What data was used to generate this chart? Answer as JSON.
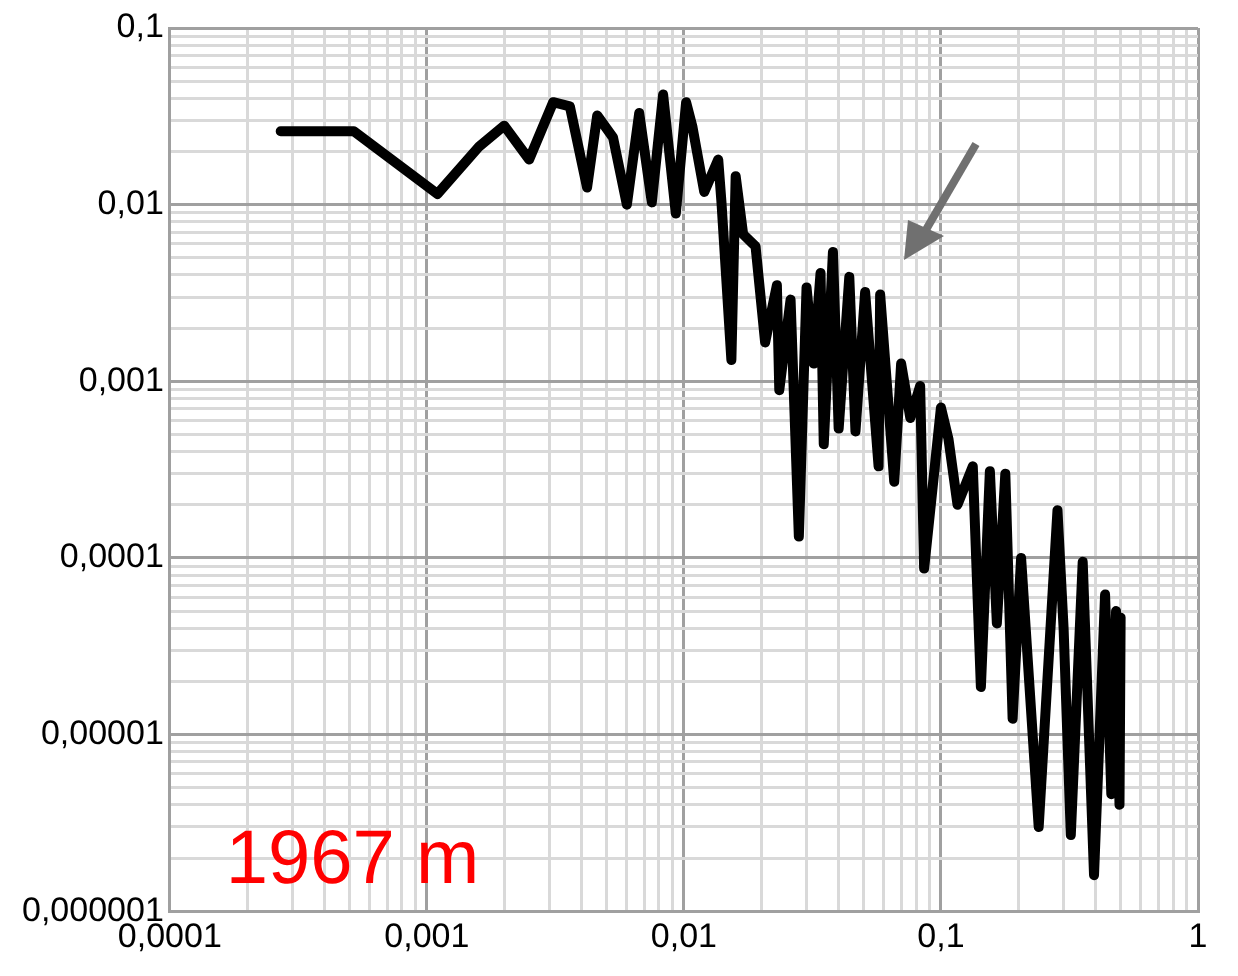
{
  "chart_data": {
    "type": "line",
    "annotations": [
      "1967 m"
    ],
    "log": "xy",
    "grid": true,
    "legend": false,
    "marker": "none",
    "line_style": "solid",
    "xlim": [
      0.0001,
      1
    ],
    "ylim": [
      1e-06,
      0.1
    ],
    "xticks": [
      {
        "value": 0.0001,
        "label": "0,0001"
      },
      {
        "value": 0.0002,
        "label": null
      },
      {
        "value": 0.0003,
        "label": null
      },
      {
        "value": 0.0004,
        "label": null
      },
      {
        "value": 0.0005,
        "label": null
      },
      {
        "value": 0.0006,
        "label": null
      },
      {
        "value": 0.0007,
        "label": null
      },
      {
        "value": 0.0008,
        "label": null
      },
      {
        "value": 0.0009,
        "label": null
      },
      {
        "value": 0.001,
        "label": "0,001"
      },
      {
        "value": 0.002,
        "label": null
      },
      {
        "value": 0.003,
        "label": null
      },
      {
        "value": 0.004,
        "label": null
      },
      {
        "value": 0.005,
        "label": null
      },
      {
        "value": 0.006,
        "label": null
      },
      {
        "value": 0.007,
        "label": null
      },
      {
        "value": 0.008,
        "label": null
      },
      {
        "value": 0.009,
        "label": null
      },
      {
        "value": 0.01,
        "label": "0,01"
      },
      {
        "value": 0.02,
        "label": null
      },
      {
        "value": 0.03,
        "label": null
      },
      {
        "value": 0.04,
        "label": null
      },
      {
        "value": 0.05,
        "label": null
      },
      {
        "value": 0.06,
        "label": null
      },
      {
        "value": 0.07,
        "label": null
      },
      {
        "value": 0.08,
        "label": null
      },
      {
        "value": 0.09,
        "label": null
      },
      {
        "value": 0.1,
        "label": "0,1"
      },
      {
        "value": 0.2,
        "label": null
      },
      {
        "value": 0.3,
        "label": null
      },
      {
        "value": 0.4,
        "label": null
      },
      {
        "value": 0.5,
        "label": null
      },
      {
        "value": 0.6,
        "label": null
      },
      {
        "value": 0.7,
        "label": null
      },
      {
        "value": 0.8,
        "label": null
      },
      {
        "value": 0.9,
        "label": null
      },
      1
    ],
    "yticks": [
      {
        "value": 1e-06,
        "label": "0,000001"
      },
      {
        "value": 2e-06,
        "label": null
      },
      {
        "value": 3e-06,
        "label": null
      },
      {
        "value": 4e-06,
        "label": null
      },
      {
        "value": 5e-06,
        "label": null
      },
      {
        "value": 6e-06,
        "label": null
      },
      {
        "value": 7e-06,
        "label": null
      },
      {
        "value": 8e-06,
        "label": null
      },
      {
        "value": 9e-06,
        "label": null
      },
      {
        "value": 1e-05,
        "label": "0,00001"
      },
      {
        "value": 2e-05,
        "label": null
      },
      {
        "value": 3e-05,
        "label": null
      },
      {
        "value": 4e-05,
        "label": null
      },
      {
        "value": 5e-05,
        "label": null
      },
      {
        "value": 6e-05,
        "label": null
      },
      {
        "value": 7e-05,
        "label": null
      },
      {
        "value": 8e-05,
        "label": null
      },
      {
        "value": 9e-05,
        "label": null
      },
      {
        "value": 0.0001,
        "label": "0,0001"
      },
      {
        "value": 0.0002,
        "label": null
      },
      {
        "value": 0.0003,
        "label": null
      },
      {
        "value": 0.0004,
        "label": null
      },
      {
        "value": 0.0005,
        "label": null
      },
      {
        "value": 0.0006,
        "label": null
      },
      {
        "value": 0.0007,
        "label": null
      },
      {
        "value": 0.0008,
        "label": null
      },
      {
        "value": 0.0009,
        "label": null
      },
      {
        "value": 0.001,
        "label": "0,001"
      },
      {
        "value": 0.002,
        "label": null
      },
      {
        "value": 0.003,
        "label": null
      },
      {
        "value": 0.004,
        "label": null
      },
      {
        "value": 0.005,
        "label": null
      },
      {
        "value": 0.006,
        "label": null
      },
      {
        "value": 0.007,
        "label": null
      },
      {
        "value": 0.008,
        "label": null
      },
      {
        "value": 0.009,
        "label": null
      },
      {
        "value": 0.01,
        "label": "0,01"
      },
      {
        "value": 0.02,
        "label": null
      },
      {
        "value": 0.03,
        "label": null
      },
      {
        "value": 0.04,
        "label": null
      },
      {
        "value": 0.05,
        "label": null
      },
      {
        "value": 0.06,
        "label": null
      },
      {
        "value": 0.07,
        "label": null
      },
      {
        "value": 0.08,
        "label": null
      },
      {
        "value": 0.09,
        "label": null
      },
      {
        "value": 0.1,
        "label": "0,1"
      }
    ],
    "series": [
      {
        "color": "#000000",
        "x": [
          0.00027,
          0.00052,
          0.0011,
          0.0016,
          0.002,
          0.0025,
          0.0031,
          0.0036,
          0.0042,
          0.0046,
          0.0053,
          0.006,
          0.0067,
          0.0075,
          0.0083,
          0.0093,
          0.0102,
          0.0108,
          0.012,
          0.0136,
          0.014,
          0.0153,
          0.0159,
          0.017,
          0.019,
          0.0207,
          0.023,
          0.0235,
          0.026,
          0.028,
          0.03,
          0.032,
          0.034,
          0.035,
          0.038,
          0.04,
          0.044,
          0.0465,
          0.0507,
          0.0572,
          0.058,
          0.0658,
          0.07,
          0.076,
          0.083,
          0.086,
          0.1,
          0.107,
          0.116,
          0.133,
          0.143,
          0.155,
          0.165,
          0.178,
          0.19,
          0.205,
          0.24,
          0.284,
          0.3,
          0.32,
          0.356,
          0.394,
          0.435,
          0.46,
          0.48,
          0.495,
          0.5
        ],
        "values": [
          0.026,
          0.026,
          0.0115,
          0.0214,
          0.028,
          0.018,
          0.038,
          0.036,
          0.0125,
          0.032,
          0.024,
          0.01,
          0.033,
          0.0103,
          0.042,
          0.0089,
          0.038,
          0.0275,
          0.0118,
          0.018,
          0.0103,
          0.00132,
          0.0145,
          0.0068,
          0.0058,
          0.00166,
          0.0035,
          0.00089,
          0.0029,
          0.000132,
          0.0034,
          0.00126,
          0.0041,
          0.00044,
          0.0054,
          0.00054,
          0.0039,
          0.00052,
          0.0032,
          0.00033,
          0.0031,
          0.00027,
          0.00126,
          0.00062,
          0.00094,
          8.7e-05,
          0.00071,
          0.00047,
          0.0002,
          0.00033,
          1.86e-05,
          0.00031,
          4.26e-05,
          0.0003,
          1.23e-05,
          0.0001,
          3e-06,
          0.000186,
          4e-05,
          2.7e-06,
          9.5e-05,
          1.6e-06,
          6.2e-05,
          4.6e-06,
          5e-05,
          4e-06,
          4.6e-05
        ]
      }
    ]
  }
}
